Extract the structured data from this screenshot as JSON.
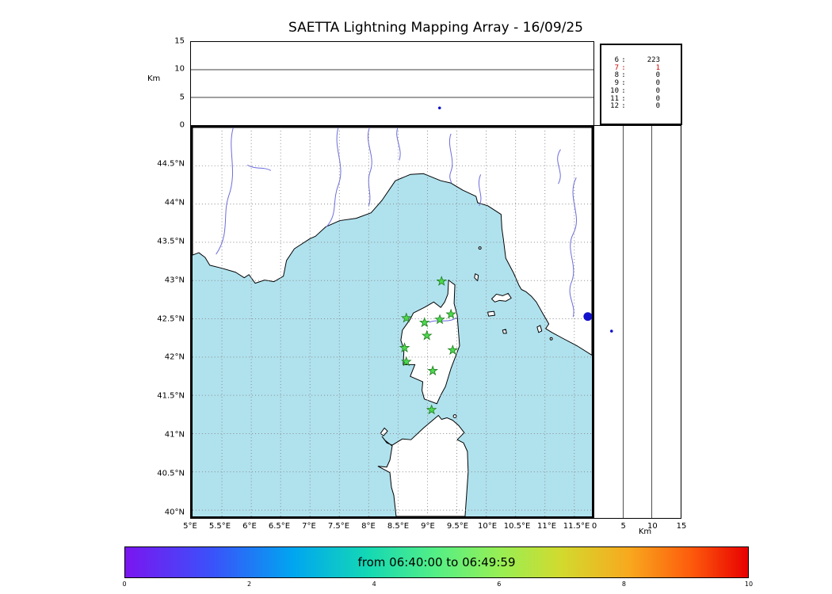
{
  "title": "SAETTA Lightning Mapping Array - 16/09/25",
  "style": {
    "css_vars": {
      "sea": "#b0e2ee",
      "land": "#ffffff",
      "coast": "#000000",
      "river": "#6b6bdc",
      "grid": "#888888",
      "station": "#4dd94d",
      "station-edge": "#1d7a1d",
      "event": "#1111cc",
      "stat-red": "#cc0000"
    },
    "colorbar_gradient": [
      "#7a16f0 0%",
      "#3a52fa 14%",
      "#00a6f0 27%",
      "#14d8b4 39%",
      "#55ef85 50%",
      "#96ef55 60%",
      "#d2da2e 70%",
      "#f8a81e 81%",
      "#fd5a0c 91%",
      "#e80000 100%"
    ]
  },
  "axes": {
    "top_panel": {
      "ylabel": "Km",
      "yticks": [
        {
          "value": 0,
          "label": "0"
        },
        {
          "value": 5,
          "label": "5"
        },
        {
          "value": 10,
          "label": "10"
        },
        {
          "value": 15,
          "label": "15"
        }
      ]
    },
    "map": {
      "lat_ticks": [
        {
          "value": 44.5,
          "label": "44.5°N"
        },
        {
          "value": 44,
          "label": "44°N"
        },
        {
          "value": 43.5,
          "label": "43.5°N"
        },
        {
          "value": 43,
          "label": "43°N"
        },
        {
          "value": 42.5,
          "label": "42.5°N"
        },
        {
          "value": 42,
          "label": "42°N"
        },
        {
          "value": 41.5,
          "label": "41.5°N"
        },
        {
          "value": 41,
          "label": "41°N"
        },
        {
          "value": 40.5,
          "label": "40.5°N"
        },
        {
          "value": 40,
          "label": "40°N"
        }
      ],
      "lon_ticks": [
        {
          "value": 5,
          "label": "5°E"
        },
        {
          "value": 5.5,
          "label": "5.5°E"
        },
        {
          "value": 6,
          "label": "6°E"
        },
        {
          "value": 6.5,
          "label": "6.5°E"
        },
        {
          "value": 7,
          "label": "7°E"
        },
        {
          "value": 7.5,
          "label": "7.5°E"
        },
        {
          "value": 8,
          "label": "8°E"
        },
        {
          "value": 8.5,
          "label": "8.5°E"
        },
        {
          "value": 9,
          "label": "9°E"
        },
        {
          "value": 9.5,
          "label": "9.5°E"
        },
        {
          "value": 10,
          "label": "10°E"
        },
        {
          "value": 10.5,
          "label": "10.5°E"
        },
        {
          "value": 11,
          "label": "11°E"
        },
        {
          "value": 11.5,
          "label": "11.5°E"
        }
      ]
    },
    "right_panel": {
      "xlabel": "Km",
      "xticks": [
        {
          "value": 0,
          "label": "0"
        },
        {
          "value": 5,
          "label": "5"
        },
        {
          "value": 10,
          "label": "10"
        },
        {
          "value": 15,
          "label": "15"
        }
      ]
    },
    "colorbar_ticks": [
      {
        "value": 0,
        "label": "0"
      },
      {
        "value": 2,
        "label": "2"
      },
      {
        "value": 4,
        "label": "4"
      },
      {
        "value": 6,
        "label": "6"
      },
      {
        "value": 8,
        "label": "8"
      },
      {
        "value": 10,
        "label": "10"
      }
    ]
  },
  "stats": {
    "rows": [
      {
        "label": "6",
        "value": "223",
        "highlight": false
      },
      {
        "label": "7",
        "value": "1",
        "highlight": true
      },
      {
        "label": "8",
        "value": "0",
        "highlight": false
      },
      {
        "label": "9",
        "value": "0",
        "highlight": false
      },
      {
        "label": "10",
        "value": "0",
        "highlight": false
      },
      {
        "label": "11",
        "value": "0",
        "highlight": false
      },
      {
        "label": "12",
        "value": "0",
        "highlight": false
      }
    ]
  },
  "colorbar": {
    "label": "from 06:40:00 to 06:49:59"
  },
  "chart_data": {
    "type": "scatter",
    "title": "SAETTA Lightning Mapping Array - 16/09/25",
    "map_panel": {
      "lon_range": [
        5.0,
        11.8
      ],
      "lat_range": [
        39.92,
        45.0
      ],
      "station_marker": "green-star",
      "stations_lon_lat": [
        [
          9.24,
          42.99
        ],
        [
          8.64,
          42.51
        ],
        [
          8.95,
          42.45
        ],
        [
          9.21,
          42.49
        ],
        [
          9.4,
          42.56
        ],
        [
          8.99,
          42.28
        ],
        [
          8.61,
          42.12
        ],
        [
          8.64,
          41.94
        ],
        [
          9.43,
          42.09
        ],
        [
          9.09,
          41.82
        ],
        [
          9.07,
          41.31
        ]
      ]
    },
    "events": {
      "map_lon_lat": [
        [
          11.73,
          42.53
        ]
      ],
      "alt_vs_lon": [
        {
          "lon": 9.2,
          "alt_km": 3.1
        }
      ],
      "alt_vs_lat": [
        {
          "alt_km": 3.0,
          "lat": 42.34
        }
      ]
    },
    "altitude_axis_km": [
      0,
      15
    ],
    "station_count_histogram": {
      "min_stations": [
        6,
        7,
        8,
        9,
        10,
        11,
        12
      ],
      "counts": [
        223,
        1,
        0,
        0,
        0,
        0,
        0
      ]
    },
    "colorbar": {
      "range": [
        0,
        10
      ],
      "label": "from 06:40:00 to 06:49:59",
      "colormap": "rainbow"
    }
  }
}
